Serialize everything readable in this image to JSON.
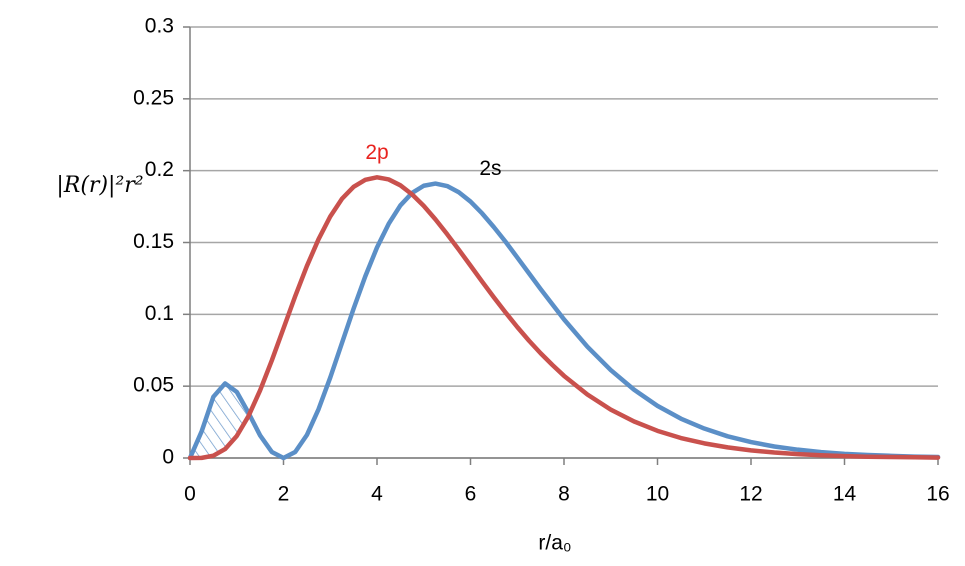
{
  "chart_data": {
    "type": "line",
    "y_label": "|R(r)|²r²",
    "x_label": "r/a₀",
    "x": [
      0,
      0.25,
      0.5,
      0.75,
      1,
      1.25,
      1.5,
      1.75,
      2,
      2.25,
      2.5,
      2.75,
      3,
      3.25,
      3.5,
      3.75,
      4,
      4.25,
      4.5,
      4.75,
      5,
      5.25,
      5.5,
      5.75,
      6,
      6.25,
      6.5,
      6.75,
      7,
      7.25,
      7.5,
      7.75,
      8,
      8.5,
      9,
      9.5,
      10,
      10.5,
      11,
      11.5,
      12,
      12.5,
      13,
      13.5,
      14,
      14.5,
      15,
      15.5,
      16
    ],
    "series": [
      {
        "name": "2s",
        "color": "#5b8fc7",
        "label_color": "#000000",
        "values": [
          0,
          0.0186,
          0.0426,
          0.0519,
          0.046,
          0.0315,
          0.0157,
          0.0042,
          0,
          0.0042,
          0.016,
          0.034,
          0.056,
          0.08,
          0.104,
          0.1265,
          0.1465,
          0.163,
          0.1758,
          0.1845,
          0.1895,
          0.191,
          0.1893,
          0.185,
          0.1785,
          0.1702,
          0.1607,
          0.1505,
          0.1396,
          0.1286,
          0.1176,
          0.107,
          0.0965,
          0.0775,
          0.0612,
          0.0475,
          0.0363,
          0.0274,
          0.0205,
          0.0151,
          0.0111,
          0.008,
          0.0058,
          0.0041,
          0.0029,
          0.0021,
          0.0015,
          0.001,
          0.0007
        ]
      },
      {
        "name": "2p",
        "color": "#c9514d",
        "label_color": "#e8231f",
        "values": [
          0,
          0.0001,
          0.0016,
          0.0062,
          0.0153,
          0.0291,
          0.0471,
          0.0679,
          0.0902,
          0.1126,
          0.1336,
          0.1523,
          0.1681,
          0.1804,
          0.1888,
          0.1936,
          0.1954,
          0.1939,
          0.1898,
          0.1835,
          0.1755,
          0.1661,
          0.1558,
          0.145,
          0.1339,
          0.1227,
          0.1118,
          0.1013,
          0.0912,
          0.0817,
          0.0729,
          0.0648,
          0.0572,
          0.0442,
          0.0337,
          0.0254,
          0.0189,
          0.0139,
          0.0102,
          0.0074,
          0.0053,
          0.0038,
          0.0027,
          0.0019,
          0.0013,
          0.0009,
          0.0007,
          0.0005,
          0.0003
        ]
      }
    ],
    "xlim": [
      0,
      16
    ],
    "xticks": [
      0,
      2,
      4,
      6,
      8,
      10,
      12,
      14,
      16
    ],
    "ylim": [
      0,
      0.3
    ],
    "yticks": [
      0,
      0.05,
      0.1,
      0.15,
      0.2,
      0.25,
      0.3
    ],
    "grid": true
  }
}
